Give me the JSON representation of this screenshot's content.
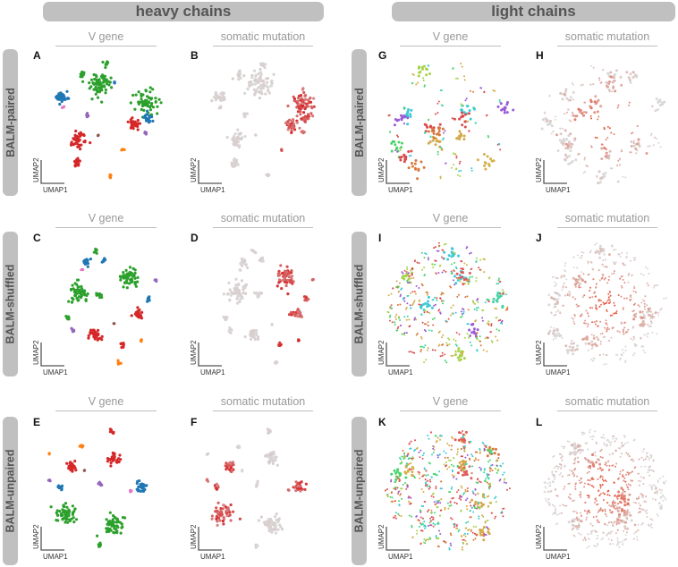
{
  "figure": {
    "group_headers": [
      "heavy chains",
      "light chains"
    ],
    "row_labels": [
      "BALM-paired",
      "BALM-shuffled",
      "BALM-unpaired"
    ],
    "column_titles": [
      "V gene",
      "somatic mutation",
      "V gene",
      "somatic mutation"
    ],
    "axis": {
      "x": "UMAP1",
      "y": "UMAP2"
    }
  },
  "chart_data": [
    {
      "panel": "A",
      "type": "scatter",
      "chain": "heavy",
      "model": "BALM-paired",
      "title": "V gene",
      "xlabel": "UMAP1",
      "ylabel": "UMAP2",
      "color_by": "V gene family",
      "colors": {
        "green": "#2ca02c",
        "blue": "#1f77b4",
        "red": "#d62728",
        "purple": "#9467bd",
        "orange": "#ff7f0e",
        "pink": "#e377c2",
        "brown": "#8c564b"
      },
      "clusters": [
        {
          "color": "green",
          "x": 0.49,
          "y": 0.8,
          "size": 0.1,
          "n": 70
        },
        {
          "color": "green",
          "x": 0.33,
          "y": 0.88,
          "size": 0.03,
          "n": 12
        },
        {
          "color": "green",
          "x": 0.53,
          "y": 0.97,
          "size": 0.03,
          "n": 10
        },
        {
          "color": "green",
          "x": 0.86,
          "y": 0.66,
          "size": 0.09,
          "n": 60
        },
        {
          "color": "blue",
          "x": 0.17,
          "y": 0.7,
          "size": 0.05,
          "n": 35
        },
        {
          "color": "blue",
          "x": 0.88,
          "y": 0.53,
          "size": 0.04,
          "n": 20
        },
        {
          "color": "blue",
          "x": 0.6,
          "y": 0.82,
          "size": 0.01,
          "n": 3
        },
        {
          "color": "red",
          "x": 0.31,
          "y": 0.36,
          "size": 0.06,
          "n": 40
        },
        {
          "color": "red",
          "x": 0.3,
          "y": 0.18,
          "size": 0.035,
          "n": 18
        },
        {
          "color": "red",
          "x": 0.76,
          "y": 0.48,
          "size": 0.05,
          "n": 30
        },
        {
          "color": "purple",
          "x": 0.38,
          "y": 0.56,
          "size": 0.02,
          "n": 8
        },
        {
          "color": "purple",
          "x": 0.86,
          "y": 0.42,
          "size": 0.015,
          "n": 5
        },
        {
          "color": "orange",
          "x": 0.68,
          "y": 0.28,
          "size": 0.012,
          "n": 4
        },
        {
          "color": "orange",
          "x": 0.57,
          "y": 0.08,
          "size": 0.015,
          "n": 6
        },
        {
          "color": "pink",
          "x": 0.18,
          "y": 0.62,
          "size": 0.012,
          "n": 3
        },
        {
          "color": "brown",
          "x": 0.47,
          "y": 0.4,
          "size": 0.008,
          "n": 2
        }
      ]
    },
    {
      "panel": "B",
      "type": "scatter",
      "chain": "heavy",
      "model": "BALM-paired",
      "title": "somatic mutation",
      "xlabel": "UMAP1",
      "ylabel": "UMAP2",
      "color_by": "somatic mutation",
      "color_scale": [
        "#d9d9d9",
        "#d62728"
      ]
    },
    {
      "panel": "C",
      "type": "scatter",
      "chain": "heavy",
      "model": "BALM-shuffled",
      "title": "V gene",
      "xlabel": "UMAP1",
      "ylabel": "UMAP2",
      "color_by": "V gene family",
      "clusters": [
        {
          "color": "green",
          "x": 0.32,
          "y": 0.6,
          "size": 0.08,
          "n": 55
        },
        {
          "color": "green",
          "x": 0.72,
          "y": 0.72,
          "size": 0.08,
          "n": 55
        },
        {
          "color": "green",
          "x": 0.45,
          "y": 0.93,
          "size": 0.02,
          "n": 6
        },
        {
          "color": "green",
          "x": 0.22,
          "y": 0.4,
          "size": 0.02,
          "n": 8
        },
        {
          "color": "green",
          "x": 0.48,
          "y": 0.58,
          "size": 0.03,
          "n": 12
        },
        {
          "color": "blue",
          "x": 0.37,
          "y": 0.84,
          "size": 0.035,
          "n": 18
        },
        {
          "color": "blue",
          "x": 0.52,
          "y": 0.86,
          "size": 0.02,
          "n": 8
        },
        {
          "color": "blue",
          "x": 0.88,
          "y": 0.55,
          "size": 0.02,
          "n": 8
        },
        {
          "color": "red",
          "x": 0.8,
          "y": 0.43,
          "size": 0.04,
          "n": 25
        },
        {
          "color": "red",
          "x": 0.45,
          "y": 0.27,
          "size": 0.05,
          "n": 30
        },
        {
          "color": "red",
          "x": 0.67,
          "y": 0.18,
          "size": 0.02,
          "n": 8
        },
        {
          "color": "purple",
          "x": 0.26,
          "y": 0.3,
          "size": 0.018,
          "n": 6
        },
        {
          "color": "purple",
          "x": 0.94,
          "y": 0.7,
          "size": 0.01,
          "n": 3
        },
        {
          "color": "orange",
          "x": 0.64,
          "y": 0.04,
          "size": 0.015,
          "n": 5
        },
        {
          "color": "orange",
          "x": 0.82,
          "y": 0.22,
          "size": 0.01,
          "n": 3
        },
        {
          "color": "pink",
          "x": 0.34,
          "y": 0.78,
          "size": 0.01,
          "n": 3
        },
        {
          "color": "brown",
          "x": 0.6,
          "y": 0.35,
          "size": 0.008,
          "n": 2
        }
      ]
    },
    {
      "panel": "D",
      "type": "scatter",
      "chain": "heavy",
      "model": "BALM-shuffled",
      "title": "somatic mutation",
      "xlabel": "UMAP1",
      "ylabel": "UMAP2",
      "color_by": "somatic mutation",
      "color_scale": [
        "#d9d9d9",
        "#d62728"
      ]
    },
    {
      "panel": "E",
      "type": "scatter",
      "chain": "heavy",
      "model": "BALM-unpaired",
      "title": "V gene",
      "xlabel": "UMAP1",
      "ylabel": "UMAP2",
      "color_by": "V gene family",
      "clusters": [
        {
          "color": "green",
          "x": 0.2,
          "y": 0.3,
          "size": 0.08,
          "n": 55
        },
        {
          "color": "green",
          "x": 0.6,
          "y": 0.22,
          "size": 0.08,
          "n": 55
        },
        {
          "color": "green",
          "x": 0.48,
          "y": 0.05,
          "size": 0.02,
          "n": 6
        },
        {
          "color": "red",
          "x": 0.6,
          "y": 0.75,
          "size": 0.05,
          "n": 30
        },
        {
          "color": "red",
          "x": 0.25,
          "y": 0.68,
          "size": 0.04,
          "n": 25
        },
        {
          "color": "red",
          "x": 0.58,
          "y": 0.96,
          "size": 0.02,
          "n": 8
        },
        {
          "color": "blue",
          "x": 0.82,
          "y": 0.52,
          "size": 0.05,
          "n": 30
        },
        {
          "color": "blue",
          "x": 0.15,
          "y": 0.52,
          "size": 0.025,
          "n": 10
        },
        {
          "color": "purple",
          "x": 0.48,
          "y": 0.54,
          "size": 0.02,
          "n": 6
        },
        {
          "color": "purple",
          "x": 0.07,
          "y": 0.57,
          "size": 0.01,
          "n": 3
        },
        {
          "color": "orange",
          "x": 0.33,
          "y": 0.84,
          "size": 0.015,
          "n": 5
        },
        {
          "color": "orange",
          "x": 0.07,
          "y": 0.78,
          "size": 0.008,
          "n": 2
        },
        {
          "color": "pink",
          "x": 0.74,
          "y": 0.49,
          "size": 0.01,
          "n": 3
        },
        {
          "color": "brown",
          "x": 0.36,
          "y": 0.65,
          "size": 0.006,
          "n": 2
        }
      ]
    },
    {
      "panel": "F",
      "type": "scatter",
      "chain": "heavy",
      "model": "BALM-unpaired",
      "title": "somatic mutation",
      "xlabel": "UMAP1",
      "ylabel": "UMAP2",
      "color_by": "somatic mutation",
      "color_scale": [
        "#d9d9d9",
        "#d62728"
      ]
    },
    {
      "panel": "G",
      "type": "scatter",
      "chain": "light",
      "model": "BALM-paired",
      "title": "V gene",
      "xlabel": "UMAP1",
      "ylabel": "UMAP2",
      "color_by": "V gene family",
      "colors": {
        "gold": "#d4b04a",
        "teal": "#3fd3a4",
        "red": "#d94a4a",
        "cyan": "#3ec9d6",
        "lime": "#a8d24a",
        "green": "#4ad46a",
        "orange": "#d9773a",
        "purple": "#9a5ad6"
      }
    },
    {
      "panel": "H",
      "type": "scatter",
      "chain": "light",
      "model": "BALM-paired",
      "title": "somatic mutation",
      "xlabel": "UMAP1",
      "ylabel": "UMAP2",
      "color_by": "somatic mutation",
      "color_scale": [
        "#d9d9d9",
        "#e8492f"
      ]
    },
    {
      "panel": "I",
      "type": "scatter",
      "chain": "light",
      "model": "BALM-shuffled",
      "title": "V gene",
      "xlabel": "UMAP1",
      "ylabel": "UMAP2",
      "color_by": "V gene family"
    },
    {
      "panel": "J",
      "type": "scatter",
      "chain": "light",
      "model": "BALM-shuffled",
      "title": "somatic mutation",
      "xlabel": "UMAP1",
      "ylabel": "UMAP2",
      "color_by": "somatic mutation",
      "color_scale": [
        "#d9d9d9",
        "#e8492f"
      ]
    },
    {
      "panel": "K",
      "type": "scatter",
      "chain": "light",
      "model": "BALM-unpaired",
      "title": "V gene",
      "xlabel": "UMAP1",
      "ylabel": "UMAP2",
      "color_by": "V gene family"
    },
    {
      "panel": "L",
      "type": "scatter",
      "chain": "light",
      "model": "BALM-unpaired",
      "title": "somatic mutation",
      "xlabel": "UMAP1",
      "ylabel": "UMAP2",
      "color_by": "somatic mutation",
      "color_scale": [
        "#d9d9d9",
        "#e8492f"
      ]
    }
  ]
}
